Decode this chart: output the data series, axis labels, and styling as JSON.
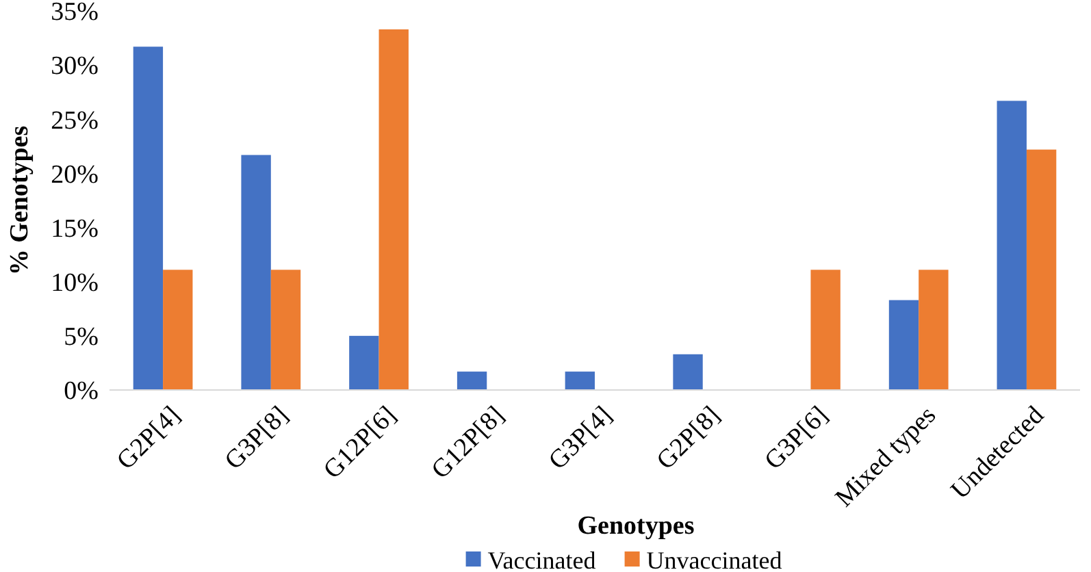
{
  "chart_data": {
    "type": "bar",
    "xlabel": "Genotypes",
    "ylabel": "% Genotypes",
    "categories": [
      "G2P[4]",
      "G3P[8]",
      "G12P[6]",
      "G12P[8]",
      "G3P[4]",
      "G2P[8]",
      "G3P[6]",
      "Mixed types",
      "Undetected"
    ],
    "series": [
      {
        "name": "Vaccinated",
        "color": "#4472c4",
        "values": [
          31.7,
          21.7,
          5.0,
          1.7,
          1.7,
          3.3,
          0,
          8.3,
          26.7
        ]
      },
      {
        "name": "Unvaccinated",
        "color": "#ed7d31",
        "values": [
          11.1,
          11.1,
          33.3,
          0,
          0,
          0,
          11.1,
          11.1,
          22.2
        ]
      }
    ],
    "ylim": [
      0,
      35
    ],
    "yticks": [
      {
        "value": 0,
        "label": "0%"
      },
      {
        "value": 5,
        "label": "5%"
      },
      {
        "value": 10,
        "label": "10%"
      },
      {
        "value": 15,
        "label": "15%"
      },
      {
        "value": 20,
        "label": "20%"
      },
      {
        "value": 25,
        "label": "25%"
      },
      {
        "value": 30,
        "label": "30%"
      },
      {
        "value": 35,
        "label": "35%"
      }
    ],
    "grid": false,
    "legend": "bottom"
  }
}
